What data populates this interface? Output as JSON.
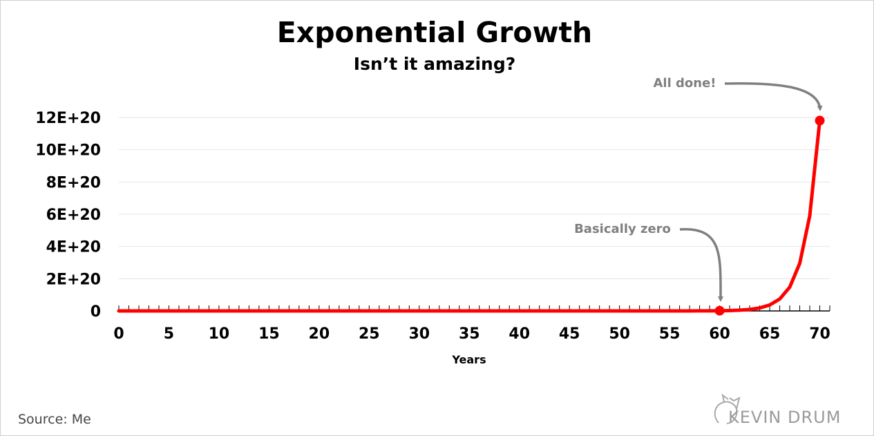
{
  "colors": {
    "series": "#ff0000",
    "grid": "#e4e4e4",
    "annotation": "#7f7f7f",
    "text": "#000000"
  },
  "chart_data": {
    "type": "line",
    "title": "Exponential Growth",
    "subtitle": "Isn’t it amazing?",
    "xlabel": "Years",
    "ylabel": "",
    "xlim": [
      0,
      71
    ],
    "ylim": [
      0,
      1.2e+21
    ],
    "x_ticks": [
      0,
      5,
      10,
      15,
      20,
      25,
      30,
      35,
      40,
      45,
      50,
      55,
      60,
      65,
      70
    ],
    "x_tick_labels": [
      "0",
      "5",
      "10",
      "15",
      "20",
      "25",
      "30",
      "35",
      "40",
      "45",
      "50",
      "55",
      "60",
      "65",
      "70"
    ],
    "y_ticks": [
      0,
      2e+20,
      4e+20,
      6e+20,
      8e+20,
      1e+21,
      1.2e+21
    ],
    "y_tick_labels": [
      "0",
      "2E+20",
      "4E+20",
      "6E+20",
      "8E+20",
      "10E+20",
      "12E+20"
    ],
    "grid": true,
    "series": [
      {
        "x": [
          0,
          1,
          2,
          3,
          4,
          5,
          6,
          7,
          8,
          9,
          10,
          11,
          12,
          13,
          14,
          15,
          16,
          17,
          18,
          19,
          20,
          21,
          22,
          23,
          24,
          25,
          26,
          27,
          28,
          29,
          30,
          31,
          32,
          33,
          34,
          35,
          36,
          37,
          38,
          39,
          40,
          41,
          42,
          43,
          44,
          45,
          46,
          47,
          48,
          49,
          50,
          51,
          52,
          53,
          54,
          55,
          56,
          57,
          58,
          59,
          60,
          61,
          62,
          63,
          64,
          65,
          66,
          67,
          68,
          69,
          70
        ],
        "values": [
          1,
          2,
          4,
          8,
          16,
          32,
          64,
          128,
          256,
          512,
          1024,
          2048,
          4096,
          8192,
          16384,
          32768,
          65536,
          131072,
          262144,
          524288,
          1048576,
          2097152,
          4194304,
          8388608,
          16777216,
          33554432,
          67108864,
          134217728,
          268435456,
          536870912,
          1073741824,
          2147483648,
          4294967296,
          8589934592,
          17179869184,
          34359738368,
          68719476736,
          137438953472,
          274877906944,
          549755813888,
          1099511627776,
          2199023255552,
          4398046511104,
          8796093022208,
          17592186044416,
          35184372088832,
          70368744177664,
          140737488355328,
          281474976710656,
          562949953421312,
          1125899906842624,
          2251799813685248,
          4503599627370496,
          9007199254740992,
          18014398509481984,
          36028797018963968,
          72057594037927936,
          144115188075855872,
          288230376151711744,
          576460752303423488,
          1152921504606846976,
          2305843009213693952,
          4611686018427387904,
          9223372036854775808,
          18446744073709551616,
          36893488147419103232,
          73786976294838206464,
          147573952589676412928,
          295147905179352825856,
          590295810358705651712,
          1180591620717411303424
        ]
      }
    ],
    "annotations": [
      {
        "text": "Basically zero",
        "x": 60,
        "y": 1152921504606846976
      },
      {
        "text": "All done!",
        "x": 70,
        "y": 1180591620717411303424
      }
    ],
    "source": "Source: Me",
    "brand": "KEVIN DRUM"
  }
}
